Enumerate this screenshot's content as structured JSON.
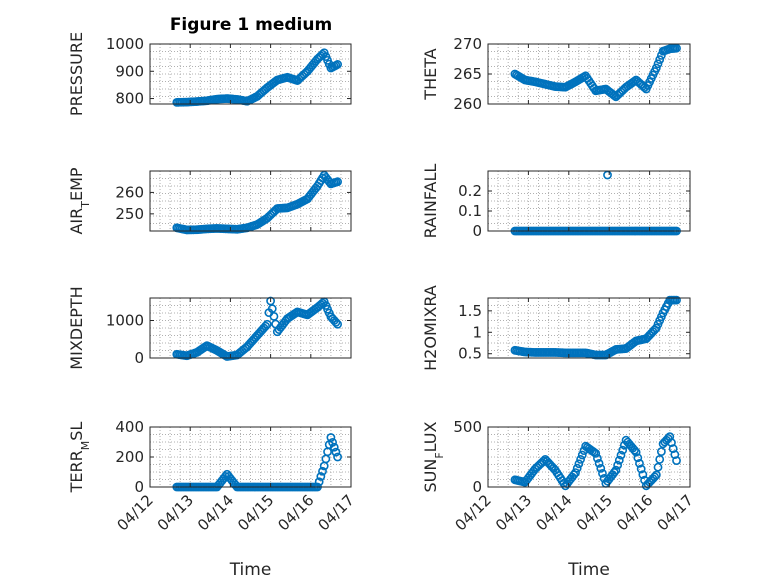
{
  "figure": {
    "title": "Figure 1 medium"
  },
  "colors": {
    "series": "#0072bd",
    "axes": "#262626",
    "grid": "#b0b0b0"
  },
  "chart_data": [
    {
      "id": "pressure",
      "type": "scatter",
      "ylabel": "PRESSURE",
      "title": "Figure 1 medium",
      "xlim": [
        "04/12",
        "04/17"
      ],
      "ylim": [
        780,
        1000
      ],
      "yticks": [
        800,
        900,
        1000
      ],
      "grid": true,
      "x": [
        "04/12 16:00",
        "04/12 22:00",
        "04/13 04:00",
        "04/13 10:00",
        "04/13 16:00",
        "04/13 22:00",
        "04/14 04:00",
        "04/14 10:00",
        "04/14 16:00",
        "04/14 22:00",
        "04/15 04:00",
        "04/15 10:00",
        "04/15 16:00",
        "04/15 22:00",
        "04/16 04:00",
        "04/16 08:00",
        "04/16 12:00",
        "04/16 16:00"
      ],
      "y": [
        786,
        787,
        789,
        792,
        798,
        800,
        797,
        790,
        808,
        840,
        868,
        878,
        866,
        900,
        945,
        968,
        912,
        925
      ]
    },
    {
      "id": "theta",
      "type": "scatter",
      "ylabel": "THETA",
      "xlim": [
        "04/12",
        "04/17"
      ],
      "ylim": [
        260,
        270
      ],
      "yticks": [
        260,
        265,
        270
      ],
      "grid": true,
      "x": [
        "04/12 16:00",
        "04/12 22:00",
        "04/13 04:00",
        "04/13 10:00",
        "04/13 16:00",
        "04/13 22:00",
        "04/14 04:00",
        "04/14 10:00",
        "04/14 16:00",
        "04/14 22:00",
        "04/15 04:00",
        "04/15 10:00",
        "04/15 16:00",
        "04/15 22:00",
        "04/16 04:00",
        "04/16 08:00",
        "04/16 12:00",
        "04/16 16:00"
      ],
      "y": [
        265,
        264,
        263.7,
        263.3,
        262.9,
        262.8,
        263.7,
        264.7,
        262.2,
        262.5,
        261.2,
        262.8,
        264,
        262.5,
        266,
        268.8,
        269.2,
        269.3
      ]
    },
    {
      "id": "air-temp",
      "type": "scatter",
      "ylabel": "AIR",
      "ylabel_sub": "T",
      "ylabel_suffix": "EMP",
      "xlim": [
        "04/12",
        "04/17"
      ],
      "ylim": [
        242,
        270
      ],
      "yticks": [
        250,
        260
      ],
      "grid": true,
      "x": [
        "04/12 16:00",
        "04/12 22:00",
        "04/13 04:00",
        "04/13 10:00",
        "04/13 16:00",
        "04/13 22:00",
        "04/14 04:00",
        "04/14 10:00",
        "04/14 16:00",
        "04/14 22:00",
        "04/15 04:00",
        "04/15 10:00",
        "04/15 16:00",
        "04/15 22:00",
        "04/16 04:00",
        "04/16 08:00",
        "04/16 12:00",
        "04/16 16:00"
      ],
      "y": [
        243.5,
        242.5,
        242.6,
        243,
        243.2,
        243,
        242.8,
        243.5,
        245,
        248,
        252.5,
        252.8,
        254.5,
        257,
        263,
        268,
        264,
        265
      ]
    },
    {
      "id": "rainfall",
      "type": "scatter",
      "ylabel": "RAINFALL",
      "xlim": [
        "04/12",
        "04/17"
      ],
      "ylim": [
        0,
        0.3
      ],
      "yticks": [
        0,
        0.1,
        0.2
      ],
      "grid": true,
      "x": [
        "04/12 16:00",
        "04/12 22:00",
        "04/13 04:00",
        "04/13 10:00",
        "04/13 16:00",
        "04/13 22:00",
        "04/14 04:00",
        "04/14 10:00",
        "04/14 16:00",
        "04/14 22:00",
        "04/15 04:00",
        "04/15 10:00",
        "04/15 16:00",
        "04/15 22:00",
        "04/16 04:00",
        "04/16 08:00",
        "04/16 12:00",
        "04/16 16:00",
        "04/14 23:00"
      ],
      "y": [
        0,
        0,
        0,
        0,
        0,
        0,
        0,
        0,
        0,
        0,
        0,
        0,
        0,
        0,
        0,
        0,
        0,
        0,
        0.28
      ]
    },
    {
      "id": "mixdepth",
      "type": "scatter",
      "ylabel": "MIXDEPTH",
      "xlim": [
        "04/12",
        "04/17"
      ],
      "ylim": [
        0,
        1600
      ],
      "yticks": [
        0,
        1000
      ],
      "grid": true,
      "x": [
        "04/12 16:00",
        "04/12 22:00",
        "04/13 04:00",
        "04/13 10:00",
        "04/13 16:00",
        "04/13 22:00",
        "04/14 04:00",
        "04/14 10:00",
        "04/14 16:00",
        "04/14 22:00",
        "04/15 00:00",
        "04/15 04:00",
        "04/15 10:00",
        "04/15 16:00",
        "04/15 22:00",
        "04/16 04:00",
        "04/16 08:00",
        "04/16 12:00",
        "04/16 16:00"
      ],
      "y": [
        100,
        60,
        150,
        330,
        200,
        40,
        80,
        300,
        600,
        900,
        1520,
        700,
        1050,
        1230,
        1150,
        1350,
        1500,
        1100,
        900
      ]
    },
    {
      "id": "h2omixra",
      "type": "scatter",
      "ylabel": "H2OMIXRA",
      "xlim": [
        "04/12",
        "04/17"
      ],
      "ylim": [
        0.4,
        1.8
      ],
      "yticks": [
        0.5,
        1,
        1.5
      ],
      "grid": true,
      "x": [
        "04/12 16:00",
        "04/12 22:00",
        "04/13 04:00",
        "04/13 10:00",
        "04/13 16:00",
        "04/13 22:00",
        "04/14 04:00",
        "04/14 10:00",
        "04/14 16:00",
        "04/14 22:00",
        "04/15 04:00",
        "04/15 10:00",
        "04/15 16:00",
        "04/15 22:00",
        "04/16 04:00",
        "04/16 08:00",
        "04/16 12:00",
        "04/16 16:00"
      ],
      "y": [
        0.58,
        0.54,
        0.53,
        0.53,
        0.53,
        0.52,
        0.52,
        0.52,
        0.47,
        0.47,
        0.6,
        0.62,
        0.8,
        0.85,
        1.1,
        1.45,
        1.75,
        1.75
      ]
    },
    {
      "id": "terr-msl",
      "type": "scatter",
      "ylabel": "TERR",
      "ylabel_sub": "M",
      "ylabel_suffix": "SL",
      "xlabel": "Time",
      "xlim": [
        "04/12",
        "04/17"
      ],
      "xticks": [
        "04/12",
        "04/13",
        "04/14",
        "04/15",
        "04/16",
        "04/17"
      ],
      "ylim": [
        0,
        400
      ],
      "yticks": [
        0,
        200,
        400
      ],
      "grid": true,
      "x": [
        "04/12 16:00",
        "04/12 22:00",
        "04/13 04:00",
        "04/13 10:00",
        "04/13 16:00",
        "04/13 22:00",
        "04/14 04:00",
        "04/14 10:00",
        "04/14 16:00",
        "04/14 22:00",
        "04/15 04:00",
        "04/15 10:00",
        "04/15 16:00",
        "04/15 22:00",
        "04/16 04:00",
        "04/16 08:00",
        "04/16 12:00",
        "04/16 16:00"
      ],
      "y": [
        0,
        0,
        0,
        0,
        0,
        85,
        0,
        0,
        0,
        0,
        0,
        0,
        0,
        0,
        0,
        140,
        330,
        200
      ]
    },
    {
      "id": "sun-flux",
      "type": "scatter",
      "ylabel": "SUN",
      "ylabel_sub": "F",
      "ylabel_suffix": "LUX",
      "xlabel": "Time",
      "xlim": [
        "04/12",
        "04/17"
      ],
      "xticks": [
        "04/12",
        "04/13",
        "04/14",
        "04/15",
        "04/16",
        "04/17"
      ],
      "ylim": [
        0,
        500
      ],
      "yticks": [
        0,
        500
      ],
      "grid": true,
      "x": [
        "04/12 16:00",
        "04/12 22:00",
        "04/13 04:00",
        "04/13 10:00",
        "04/13 16:00",
        "04/13 22:00",
        "04/14 04:00",
        "04/14 10:00",
        "04/14 16:00",
        "04/14 22:00",
        "04/15 04:00",
        "04/15 10:00",
        "04/15 16:00",
        "04/15 22:00",
        "04/16 04:00",
        "04/16 08:00",
        "04/16 12:00",
        "04/16 16:00"
      ],
      "y": [
        60,
        40,
        150,
        230,
        140,
        10,
        120,
        340,
        280,
        30,
        140,
        390,
        290,
        10,
        100,
        360,
        420,
        220
      ]
    }
  ]
}
